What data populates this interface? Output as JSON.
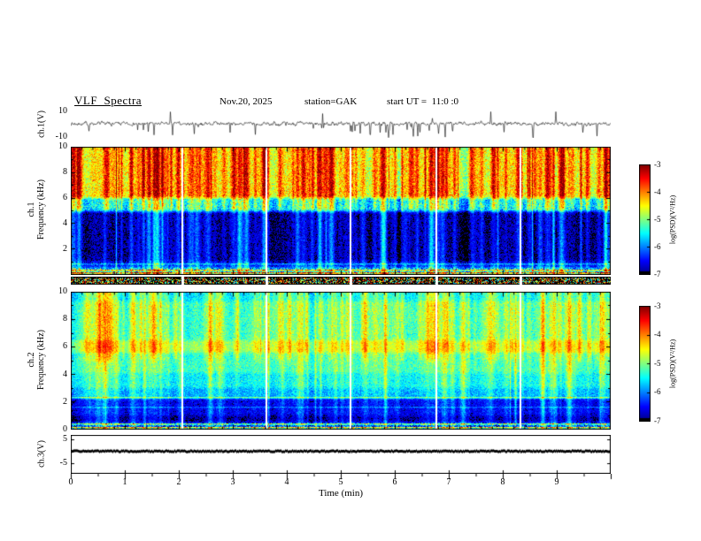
{
  "header": {
    "title": "VLF  Spectra",
    "date": "Nov.20, 2025",
    "station": "station=GAK",
    "start_ut": "start UT =  11:0 :0"
  },
  "x_axis": {
    "label": "Time (min)",
    "ticks": [
      "0",
      "1",
      "2",
      "3",
      "4",
      "5",
      "6",
      "7",
      "8",
      "9"
    ],
    "range_min": [
      0,
      10
    ]
  },
  "y_axis": {
    "ch1_wave": {
      "label": "ch.1(V)",
      "top_tick": "10",
      "bottom_tick": "-10"
    },
    "ch1_spec": {
      "channel": "ch.1",
      "axis": "Frequency (kHz)",
      "ticks": [
        "10",
        "8",
        "6",
        "4",
        "2"
      ]
    },
    "ch2_spec": {
      "channel": "ch.2",
      "axis": "Frequency (kHz)",
      "ticks": [
        "10",
        "8",
        "6",
        "4",
        "2",
        "0"
      ]
    },
    "ch3_wave": {
      "label": "ch.3(V)",
      "top_tick": "5",
      "bottom_tick": "-5"
    }
  },
  "colorbar": {
    "label": "log(PSD)(V²/Hz)",
    "ticks": [
      "-3",
      "-4",
      "-5",
      "-6",
      "-7"
    ]
  },
  "chart_data": [
    {
      "id": "ch1-waveform",
      "type": "line",
      "ylabel": "ch.1(V)",
      "xlim": [
        0,
        10
      ],
      "ylim": [
        -10,
        10
      ],
      "summary": "Continuous fuzzy noise band of about ±2 V around a slightly positive mean with many impulsive spikes, mostly negative, reaching about -9 V",
      "gen": {
        "seed": 7,
        "baseline_v": 0.7,
        "noise_v": 1.0,
        "spike_count": 48,
        "spike_depth_v": [
          3,
          9.5
        ],
        "negative_fraction": 0.85
      }
    },
    {
      "id": "ch1-spectrogram",
      "type": "heatmap",
      "ylabel": "ch.1 Frequency (kHz)",
      "xlim": [
        0,
        10
      ],
      "ylim": [
        0,
        10
      ],
      "clim": [
        -7,
        -3
      ],
      "colormap": "jet",
      "summary": "Intense broadband emission above ~5-6 kHz (yellow/orange/red, log PSD ≈ -5 to -3.5) with strong vertical burst striping; 1-5 kHz mostly below -6.8 (black / dark blue speckle) with burst columns penetrating downward as green/cyan streaks; bright narrow multicolour bands below ~0.5 kHz; short white data-gap columns",
      "gen": {
        "seed": 11,
        "bands": [
          {
            "f0": 6.0,
            "f1": 10.0,
            "level": -4.45,
            "noise": 0.5
          },
          {
            "f0": 5.0,
            "f1": 6.0,
            "level": -5.6,
            "noise": 0.55
          },
          {
            "f0": 1.0,
            "f1": 5.0,
            "level": -6.8,
            "noise": 0.3
          },
          {
            "f0": 0.55,
            "f1": 1.0,
            "level": -6.45,
            "noise": 0.4
          },
          {
            "f0": 0.0,
            "f1": 0.55,
            "level": -5.6,
            "noise": 0.9
          }
        ],
        "stripes": [
          {
            "f": 0.15,
            "level": -4.1
          },
          {
            "f": 0.35,
            "level": -4.5
          },
          {
            "f": 0.8,
            "level": -5.9
          }
        ],
        "env_amp": 0.65,
        "streaks": {
          "count": 150,
          "amp": [
            0.35,
            1.5
          ]
        },
        "gap_minutes": [
          2.05,
          3.6,
          5.16,
          6.75,
          8.31
        ]
      }
    },
    {
      "id": "ch1-lowband-strip",
      "type": "heatmap",
      "summary": "Narrow speckled status strip beneath the ch.1 spectrogram: dense mixed-colour pixels over black with short white dropout gaps",
      "gen": {
        "seed": 5,
        "black_fraction": 0.5,
        "gap_minutes": [
          2.05,
          3.6,
          5.16,
          6.75,
          8.31
        ]
      }
    },
    {
      "id": "ch2-spectrogram",
      "type": "heatmap",
      "ylabel": "ch.2 Frequency (kHz)",
      "xlim": [
        0,
        10
      ],
      "ylim": [
        0,
        10
      ],
      "clim": [
        -7,
        -3
      ],
      "colormap": "jet",
      "summary": "Fairly uniform cyan/green speckle (log PSD ≈ -5.5 to -4.8) from ~2.5-10 kHz with dense vertical streaking, brighter green band near 6 kHz, deep-blue quiet band ~0.8-2.2 kHz, dark base below 0.5 kHz crossed by bright narrow horizontal lines",
      "gen": {
        "seed": 23,
        "bands": [
          {
            "f0": 9.3,
            "f1": 10.0,
            "level": -5.5,
            "noise": 0.35
          },
          {
            "f0": 6.5,
            "f1": 9.3,
            "level": -5.2,
            "noise": 0.38
          },
          {
            "f0": 5.6,
            "f1": 6.5,
            "level": -4.8,
            "noise": 0.3
          },
          {
            "f0": 4.1,
            "f1": 5.6,
            "level": -5.25,
            "noise": 0.35
          },
          {
            "f0": 3.0,
            "f1": 4.1,
            "level": -5.5,
            "noise": 0.35
          },
          {
            "f0": 2.2,
            "f1": 3.0,
            "level": -5.8,
            "noise": 0.35
          },
          {
            "f0": 1.0,
            "f1": 2.2,
            "level": -6.55,
            "noise": 0.3
          },
          {
            "f0": 0.5,
            "f1": 1.0,
            "level": -6.8,
            "noise": 0.25
          },
          {
            "f0": 0.0,
            "f1": 0.5,
            "level": -6.2,
            "noise": 0.8
          }
        ],
        "stripes": [
          {
            "f": 0.15,
            "level": -4.4
          },
          {
            "f": 0.4,
            "level": -5.0
          },
          {
            "f": 2.35,
            "level": -5.1
          },
          {
            "f": 1.6,
            "level": -6.1
          }
        ],
        "env_amp": 0.42,
        "streaks": {
          "count": 120,
          "amp": [
            0.25,
            1.0
          ]
        },
        "gap_minutes": [
          2.05,
          3.6,
          5.16,
          6.75,
          8.31
        ]
      }
    },
    {
      "id": "ch3-waveform",
      "type": "line",
      "ylabel": "ch.3(V)",
      "xlim": [
        0,
        10
      ],
      "ylim": [
        -5,
        5
      ],
      "summary": "Essentially flat trace at 0 V forming a thin solid dark band across the full record",
      "gen": {
        "seed": 13,
        "band_halfwidth_v": 0.55
      }
    },
    {
      "id": "colorbar",
      "type": "colorbar",
      "label": "log(PSD)(V²/Hz)",
      "ticks": [
        -3,
        -4,
        -5,
        -6,
        -7
      ],
      "colormap": "jet"
    }
  ]
}
